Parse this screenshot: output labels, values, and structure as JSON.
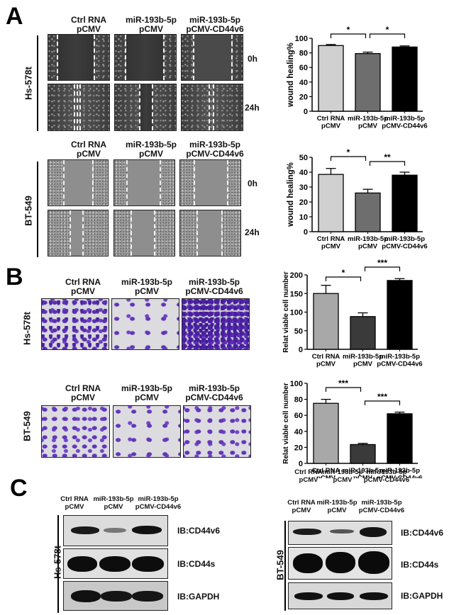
{
  "figure": {
    "panels": [
      "A",
      "B",
      "C"
    ],
    "conditions": [
      {
        "line1": "Ctrl RNA",
        "line2": "pCMV",
        "full": "Ctrl RNA\npCMV"
      },
      {
        "line1": "miR-193b-5p",
        "line2": "pCMV",
        "full": "miR-193b-5p\npCMV"
      },
      {
        "line1": "miR-193b-5p",
        "line2": "pCMV-CD44v6",
        "full": "miR-193b-5p\npCMV-CD44v6"
      }
    ],
    "cell_lines": {
      "hs578t": "Hs-578t",
      "bt549": "BT-549"
    },
    "timepoints": {
      "t0": "0h",
      "t24": "24h"
    },
    "blot_labels": [
      "IB:CD44v6",
      "IB:CD44s",
      "IB:GAPDH"
    ],
    "stray_label_bt549": {
      "line1": "Ctrl RNA  miR-193b-5p miR-193b-5p",
      "line2": "pCMV          pCMV          pCMV-CD44v6"
    }
  },
  "colors": {
    "bar_ctrl": "#d0d0d0",
    "bar_mir": "#6e6e6e",
    "bar_rescue": "#000000",
    "bar_ctrl_B": "#a8a8a8",
    "bar_mir_B": "#3a3a3a",
    "crystal_violet": "#5a2fb0"
  },
  "chart_data": [
    {
      "id": "A-Hs578t",
      "type": "bar",
      "title": "",
      "xlabel": "",
      "ylabel": "wound healing%",
      "categories": [
        "Ctrl RNA\npCMV",
        "miR-193b-5p\npCMV",
        "miR-193b-5p\npCMV-CD44v6"
      ],
      "values": [
        90,
        79,
        88
      ],
      "errors": [
        1.5,
        2,
        1.5
      ],
      "ylim": [
        0,
        100
      ],
      "yticks": [
        0,
        20,
        40,
        60,
        80,
        100
      ],
      "significance": [
        {
          "from": 0,
          "to": 1,
          "label": "*"
        },
        {
          "from": 1,
          "to": 2,
          "label": "*"
        }
      ],
      "grid": false
    },
    {
      "id": "A-BT549",
      "type": "bar",
      "title": "",
      "xlabel": "",
      "ylabel": "wound healing%",
      "categories": [
        "Ctrl RNA\npCMV",
        "miR-193b-5p\npCMV",
        "miR-193b-5p\npCMV-CD44v6"
      ],
      "values": [
        38.5,
        26,
        38
      ],
      "errors": [
        4,
        2.5,
        2
      ],
      "ylim": [
        0,
        50
      ],
      "yticks": [
        0,
        10,
        20,
        30,
        40,
        50
      ],
      "significance": [
        {
          "from": 0,
          "to": 1,
          "label": "*"
        },
        {
          "from": 1,
          "to": 2,
          "label": "**"
        }
      ],
      "grid": false
    },
    {
      "id": "B-Hs578t",
      "type": "bar",
      "title": "",
      "xlabel": "",
      "ylabel": "Relat viable cell number",
      "categories": [
        "Ctrl RNA\npCMV",
        "miR-193b-5p\npCMV",
        "miR-193b-5p\npCMV-CD44v6"
      ],
      "values": [
        150,
        88,
        185
      ],
      "errors": [
        22,
        10,
        5
      ],
      "ylim": [
        0,
        200
      ],
      "yticks": [
        0,
        50,
        100,
        150,
        200
      ],
      "significance": [
        {
          "from": 0,
          "to": 1,
          "label": "*"
        },
        {
          "from": 1,
          "to": 2,
          "label": "***"
        }
      ],
      "grid": false
    },
    {
      "id": "B-BT549",
      "type": "bar",
      "title": "",
      "xlabel": "",
      "ylabel": "Relat viable cell number",
      "categories": [
        "Ctrl RNA\npCMV",
        "miR-193b-5p\npCMV",
        "miR-193b-5p\npCMV-CD44v6"
      ],
      "values": [
        75,
        23.5,
        62
      ],
      "errors": [
        5,
        1.5,
        2
      ],
      "ylim": [
        0,
        100
      ],
      "yticks": [
        0,
        20,
        40,
        60,
        80,
        100
      ],
      "significance": [
        {
          "from": 0,
          "to": 1,
          "label": "***"
        },
        {
          "from": 1,
          "to": 2,
          "label": "***"
        }
      ],
      "grid": false
    }
  ]
}
